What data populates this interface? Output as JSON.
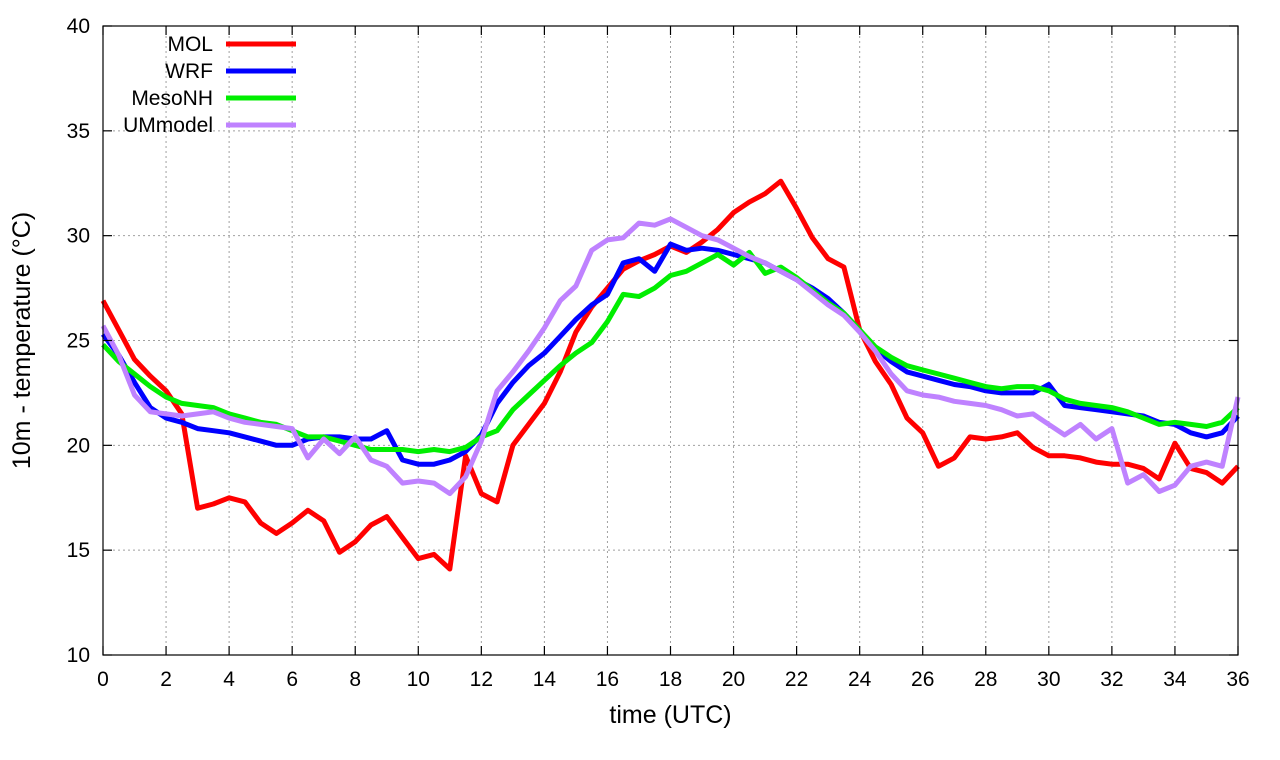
{
  "chart_data": {
    "type": "line",
    "title": "",
    "xlabel": "time (UTC)",
    "ylabel": "10m - temperature (°C)",
    "xlim": [
      0,
      36
    ],
    "ylim": [
      10,
      40
    ],
    "xticks": [
      0,
      2,
      4,
      6,
      8,
      10,
      12,
      14,
      16,
      18,
      20,
      22,
      24,
      26,
      28,
      30,
      32,
      34,
      36
    ],
    "yticks": [
      10,
      15,
      20,
      25,
      30,
      35,
      40
    ],
    "grid": true,
    "legend_position": "top-left",
    "series": [
      {
        "name": "MOL",
        "color": "#ff0000",
        "x": [
          0,
          0.5,
          1,
          1.5,
          2,
          2.5,
          3,
          3.5,
          4,
          4.5,
          5,
          5.5,
          6,
          6.5,
          7,
          7.5,
          8,
          8.5,
          9,
          9.5,
          10,
          10.5,
          11,
          11.5,
          12,
          12.5,
          13,
          13.5,
          14,
          14.5,
          15,
          15.5,
          16,
          16.5,
          17,
          17.5,
          18,
          18.5,
          19,
          19.5,
          20,
          20.5,
          21,
          21.5,
          22,
          22.5,
          23,
          23.5,
          24,
          24.5,
          25,
          25.5,
          26,
          26.5,
          27,
          27.5,
          28,
          28.5,
          29,
          29.5,
          30,
          30.5,
          31,
          31.5,
          32,
          32.5,
          33,
          33.5,
          34,
          34.5,
          35,
          35.5,
          36
        ],
        "y": [
          26.9,
          25.5,
          24.1,
          23.3,
          22.6,
          21.5,
          17.0,
          17.2,
          17.5,
          17.3,
          16.3,
          15.8,
          16.3,
          16.9,
          16.4,
          14.9,
          15.4,
          16.2,
          16.6,
          15.6,
          14.6,
          14.8,
          14.1,
          19.5,
          17.7,
          17.3,
          20.0,
          21.0,
          22.0,
          23.5,
          25.4,
          26.6,
          27.5,
          28.4,
          28.8,
          29.1,
          29.5,
          29.2,
          29.7,
          30.3,
          31.1,
          31.6,
          32.0,
          32.6,
          31.3,
          29.9,
          28.9,
          28.5,
          25.5,
          24.0,
          22.9,
          21.3,
          20.6,
          19.0,
          19.4,
          20.4,
          20.3,
          20.4,
          20.6,
          19.9,
          19.5,
          19.5,
          19.4,
          19.2,
          19.1,
          19.1,
          18.9,
          18.4,
          20.1,
          18.9,
          18.7,
          18.2,
          19.0
        ]
      },
      {
        "name": "WRF",
        "color": "#0000ff",
        "x": [
          0,
          0.5,
          1,
          1.5,
          2,
          2.5,
          3,
          3.5,
          4,
          4.5,
          5,
          5.5,
          6,
          6.5,
          7,
          7.5,
          8,
          8.5,
          9,
          9.5,
          10,
          10.5,
          11,
          11.5,
          12,
          12.5,
          13,
          13.5,
          14,
          14.5,
          15,
          15.5,
          16,
          16.5,
          17,
          17.5,
          18,
          18.5,
          19,
          19.5,
          20,
          20.5,
          21,
          21.5,
          22,
          22.5,
          23,
          23.5,
          24,
          24.5,
          25,
          25.5,
          26,
          26.5,
          27,
          27.5,
          28,
          28.5,
          29,
          29.5,
          30,
          30.5,
          31,
          31.5,
          32,
          32.5,
          33,
          33.5,
          34,
          34.5,
          35,
          35.5,
          36
        ],
        "y": [
          25.3,
          24.3,
          23.0,
          21.8,
          21.3,
          21.1,
          20.8,
          20.7,
          20.6,
          20.4,
          20.2,
          20.0,
          20.0,
          20.3,
          20.4,
          20.4,
          20.3,
          20.3,
          20.7,
          19.3,
          19.1,
          19.1,
          19.3,
          19.7,
          20.5,
          22.0,
          23.0,
          23.8,
          24.4,
          25.2,
          26.0,
          26.7,
          27.2,
          28.7,
          28.9,
          28.3,
          29.6,
          29.3,
          29.4,
          29.3,
          29.1,
          28.9,
          28.7,
          28.3,
          27.9,
          27.5,
          27.0,
          26.3,
          25.5,
          24.6,
          24.0,
          23.5,
          23.3,
          23.1,
          22.9,
          22.8,
          22.6,
          22.5,
          22.5,
          22.5,
          22.9,
          21.9,
          21.8,
          21.7,
          21.6,
          21.5,
          21.4,
          21.1,
          21.0,
          20.6,
          20.4,
          20.6,
          21.4
        ]
      },
      {
        "name": "MesoNH",
        "color": "#00ee00",
        "x": [
          0,
          0.5,
          1,
          1.5,
          2,
          2.5,
          3,
          3.5,
          4,
          4.5,
          5,
          5.5,
          6,
          6.5,
          7,
          7.5,
          8,
          8.5,
          9,
          9.5,
          10,
          10.5,
          11,
          11.5,
          12,
          12.5,
          13,
          13.5,
          14,
          14.5,
          15,
          15.5,
          16,
          16.5,
          17,
          17.5,
          18,
          18.5,
          19,
          19.5,
          20,
          20.5,
          21,
          21.5,
          22,
          22.5,
          23,
          23.5,
          24,
          24.5,
          25,
          25.5,
          26,
          26.5,
          27,
          27.5,
          28,
          28.5,
          29,
          29.5,
          30,
          30.5,
          31,
          31.5,
          32,
          32.5,
          33,
          33.5,
          34,
          34.5,
          35,
          35.5,
          36
        ],
        "y": [
          24.8,
          24.0,
          23.4,
          22.8,
          22.3,
          22.0,
          21.9,
          21.8,
          21.5,
          21.3,
          21.1,
          21.0,
          20.7,
          20.4,
          20.4,
          20.2,
          20.0,
          19.8,
          19.8,
          19.8,
          19.7,
          19.8,
          19.7,
          19.9,
          20.4,
          20.7,
          21.7,
          22.4,
          23.1,
          23.8,
          24.4,
          24.9,
          25.9,
          27.2,
          27.1,
          27.5,
          28.1,
          28.3,
          28.7,
          29.1,
          28.6,
          29.2,
          28.2,
          28.5,
          28.0,
          27.4,
          26.8,
          26.3,
          25.5,
          24.7,
          24.2,
          23.8,
          23.6,
          23.4,
          23.2,
          23.0,
          22.8,
          22.7,
          22.8,
          22.8,
          22.6,
          22.2,
          22.0,
          21.9,
          21.8,
          21.6,
          21.3,
          21.0,
          21.1,
          21.0,
          20.9,
          21.1,
          21.8
        ]
      },
      {
        "name": "UMmodel",
        "color": "#bf82ff",
        "x": [
          0,
          0.5,
          1,
          1.5,
          2,
          2.5,
          3,
          3.5,
          4,
          4.5,
          5,
          5.5,
          6,
          6.5,
          7,
          7.5,
          8,
          8.5,
          9,
          9.5,
          10,
          10.5,
          11,
          11.5,
          12,
          12.5,
          13,
          13.5,
          14,
          14.5,
          15,
          15.5,
          16,
          16.5,
          17,
          17.5,
          18,
          18.5,
          19,
          19.5,
          20,
          20.5,
          21,
          21.5,
          22,
          22.5,
          23,
          23.5,
          24,
          24.5,
          25,
          25.5,
          26,
          26.5,
          27,
          27.5,
          28,
          28.5,
          29,
          29.5,
          30,
          30.5,
          31,
          31.5,
          32,
          32.5,
          33,
          33.5,
          34,
          34.5,
          35,
          35.5,
          36
        ],
        "y": [
          25.7,
          24.3,
          22.4,
          21.6,
          21.5,
          21.4,
          21.5,
          21.6,
          21.3,
          21.1,
          21.0,
          20.9,
          20.8,
          19.4,
          20.3,
          19.6,
          20.4,
          19.3,
          19.0,
          18.2,
          18.3,
          18.2,
          17.7,
          18.5,
          20.2,
          22.6,
          23.5,
          24.5,
          25.6,
          26.9,
          27.6,
          29.3,
          29.8,
          29.9,
          30.6,
          30.5,
          30.8,
          30.4,
          30.0,
          29.8,
          29.4,
          29.0,
          28.7,
          28.3,
          27.9,
          27.3,
          26.7,
          26.2,
          25.4,
          24.5,
          23.4,
          22.6,
          22.4,
          22.3,
          22.1,
          22.0,
          21.9,
          21.7,
          21.4,
          21.5,
          21.0,
          20.5,
          21.0,
          20.3,
          20.8,
          18.2,
          18.6,
          17.8,
          18.1,
          19.0,
          19.2,
          19.0,
          22.3
        ]
      }
    ]
  }
}
